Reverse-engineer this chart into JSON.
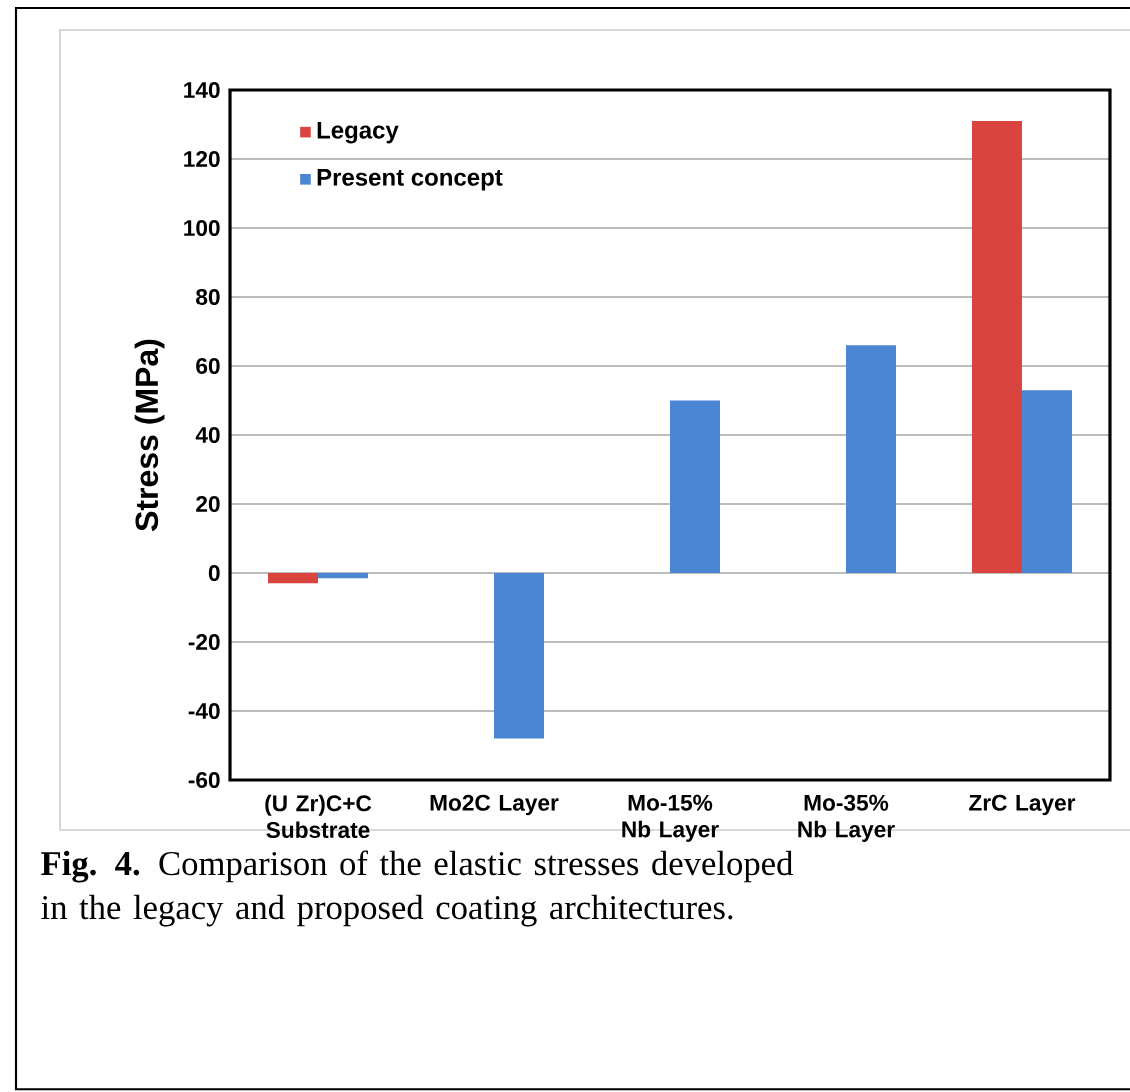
{
  "chart_data": {
    "type": "bar",
    "ylabel": "Stress (MPa)",
    "categories": [
      "(U Zr)C+C Substrate",
      "Mo2C Layer",
      "Mo-15% Nb Layer",
      "Mo-35% Nb Layer",
      "ZrC Layer"
    ],
    "series": [
      {
        "name": "Legacy",
        "color": "#d9443f",
        "values": [
          -3,
          0,
          0,
          0,
          131
        ]
      },
      {
        "name": "Present concept",
        "color": "#4a86d4",
        "values": [
          -1.5,
          -48,
          50,
          66,
          53
        ]
      }
    ],
    "ylim": [
      -60,
      140
    ],
    "yticks": [
      -60,
      -40,
      -20,
      0,
      20,
      40,
      60,
      80,
      100,
      120,
      140
    ],
    "grid": "y",
    "legend": "top left",
    "annotations": [
      "**Fig. 4.** Comparison of the elastic stresses developed in the legacy and proposed coating architectures."
    ]
  }
}
